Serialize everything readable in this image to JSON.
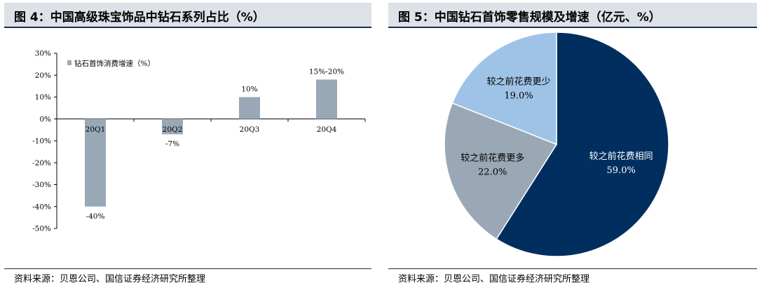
{
  "left_figure": {
    "title": "图 4：中国高级珠宝饰品中钻石系列占比（%）",
    "source": "资料来源：贝恩公司、国信证券经济研究所整理",
    "legend_label": "钻石首饰消费增速（%）",
    "bar_color": "#99a8b6",
    "chart_data": {
      "type": "bar",
      "categories": [
        "20Q1",
        "20Q2",
        "20Q3",
        "20Q4"
      ],
      "series": [
        {
          "name": "钻石首饰消费增速（%）",
          "values": [
            -40,
            -7,
            10,
            18
          ]
        }
      ],
      "data_labels": [
        "-40%",
        "-7%",
        "10%",
        "15%-20%"
      ],
      "ylim": [
        -50,
        30
      ],
      "yticks": [
        "30%",
        "20%",
        "10%",
        "0%",
        "-10%",
        "-20%",
        "-30%",
        "-40%",
        "-50%"
      ],
      "ytick_values": [
        30,
        20,
        10,
        0,
        -10,
        -20,
        -30,
        -40,
        -50
      ],
      "grid": false,
      "legend_position": "top-left"
    }
  },
  "right_figure": {
    "title": "图 5：中国钻石首饰零售规模及增速（亿元、%）",
    "source": "资料来源：贝恩公司、国信证券经济研究所整理",
    "chart_data": {
      "type": "pie",
      "slices": [
        {
          "label": "较之前花费相同",
          "value": 59.0,
          "value_label": "59.0%",
          "color": "#002f5f",
          "text_color": "#ffffff"
        },
        {
          "label": "较之前花费更多",
          "value": 22.0,
          "value_label": "22.0%",
          "color": "#9aa8b6",
          "text_color": "#000000"
        },
        {
          "label": "较之前花费更少",
          "value": 19.0,
          "value_label": "19.0%",
          "color": "#9fc3e7",
          "text_color": "#000000"
        }
      ]
    }
  }
}
